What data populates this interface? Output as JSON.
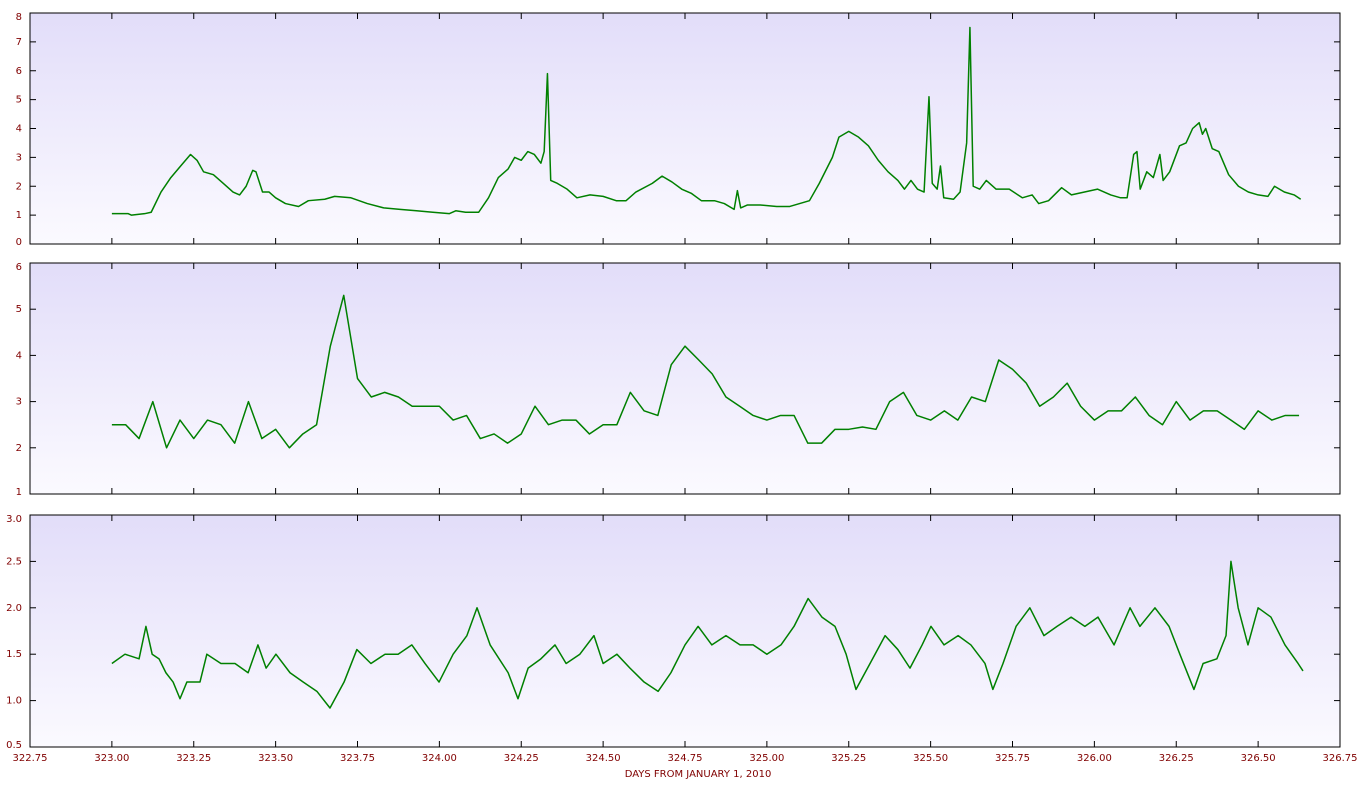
{
  "chart_data": [
    {
      "type": "line",
      "color": "#008000",
      "ylim": [
        0,
        8
      ],
      "yticks": [
        0,
        1,
        2,
        3,
        4,
        5,
        6,
        7,
        8
      ],
      "x": [
        323.0,
        323.05,
        323.06,
        323.1,
        323.12,
        323.15,
        323.18,
        323.21,
        323.24,
        323.26,
        323.28,
        323.31,
        323.34,
        323.37,
        323.39,
        323.41,
        323.43,
        323.44,
        323.46,
        323.48,
        323.5,
        323.53,
        323.57,
        323.6,
        323.65,
        323.68,
        323.73,
        323.78,
        323.83,
        323.88,
        323.93,
        323.98,
        324.03,
        324.05,
        324.08,
        324.12,
        324.15,
        324.18,
        324.21,
        324.23,
        324.25,
        324.27,
        324.29,
        324.31,
        324.32,
        324.33,
        324.34,
        324.36,
        324.39,
        324.42,
        324.46,
        324.5,
        324.54,
        324.57,
        324.6,
        324.65,
        324.68,
        324.71,
        324.74,
        324.77,
        324.8,
        324.84,
        324.87,
        324.9,
        324.91,
        324.92,
        324.94,
        324.98,
        325.03,
        325.07,
        325.1,
        325.13,
        325.16,
        325.2,
        325.22,
        325.25,
        325.28,
        325.31,
        325.34,
        325.37,
        325.4,
        325.42,
        325.44,
        325.46,
        325.48,
        325.495,
        325.505,
        325.52,
        325.53,
        325.54,
        325.57,
        325.59,
        325.61,
        325.62,
        325.63,
        325.65,
        325.67,
        325.7,
        325.74,
        325.78,
        325.81,
        325.83,
        325.86,
        325.9,
        325.93,
        325.97,
        326.01,
        326.05,
        326.08,
        326.1,
        326.12,
        326.13,
        326.14,
        326.16,
        326.18,
        326.2,
        326.21,
        326.23,
        326.26,
        326.28,
        326.3,
        326.32,
        326.33,
        326.34,
        326.36,
        326.38,
        326.41,
        326.44,
        326.47,
        326.5,
        326.53,
        326.55,
        326.58,
        326.61,
        326.63
      ],
      "values": [
        1.05,
        1.05,
        1.0,
        1.05,
        1.1,
        1.8,
        2.3,
        2.7,
        3.1,
        2.9,
        2.5,
        2.4,
        2.1,
        1.8,
        1.7,
        2.0,
        2.55,
        2.5,
        1.8,
        1.8,
        1.6,
        1.4,
        1.3,
        1.5,
        1.55,
        1.65,
        1.6,
        1.4,
        1.25,
        1.2,
        1.15,
        1.1,
        1.05,
        1.15,
        1.1,
        1.1,
        1.6,
        2.3,
        2.6,
        3.0,
        2.9,
        3.2,
        3.1,
        2.8,
        3.2,
        5.9,
        2.2,
        2.1,
        1.9,
        1.6,
        1.7,
        1.65,
        1.5,
        1.5,
        1.8,
        2.1,
        2.35,
        2.15,
        1.9,
        1.75,
        1.5,
        1.5,
        1.4,
        1.2,
        1.85,
        1.25,
        1.35,
        1.35,
        1.3,
        1.3,
        1.4,
        1.5,
        2.1,
        3.0,
        3.7,
        3.9,
        3.7,
        3.4,
        2.9,
        2.5,
        2.2,
        1.9,
        2.2,
        1.9,
        1.8,
        5.1,
        2.1,
        1.9,
        2.7,
        1.6,
        1.55,
        1.8,
        3.5,
        7.5,
        2.0,
        1.9,
        2.2,
        1.9,
        1.9,
        1.6,
        1.7,
        1.4,
        1.5,
        1.95,
        1.7,
        1.8,
        1.9,
        1.7,
        1.6,
        1.6,
        3.1,
        3.2,
        1.9,
        2.5,
        2.3,
        3.1,
        2.2,
        2.5,
        3.4,
        3.5,
        4.0,
        4.2,
        3.8,
        4.0,
        3.3,
        3.2,
        2.4,
        2.0,
        1.8,
        1.7,
        1.65,
        2.0,
        1.8,
        1.7,
        1.55
      ]
    },
    {
      "type": "line",
      "color": "#008000",
      "ylim": [
        1,
        6
      ],
      "yticks": [
        1,
        2,
        3,
        4,
        5,
        6
      ],
      "x": [
        323,
        323.042,
        323.083,
        323.125,
        323.167,
        323.208,
        323.25,
        323.292,
        323.333,
        323.375,
        323.417,
        323.458,
        323.5,
        323.542,
        323.583,
        323.625,
        323.667,
        323.708,
        323.75,
        323.792,
        323.833,
        323.875,
        323.917,
        323.958,
        324,
        324.042,
        324.083,
        324.125,
        324.167,
        324.208,
        324.25,
        324.292,
        324.333,
        324.375,
        324.417,
        324.458,
        324.5,
        324.542,
        324.583,
        324.625,
        324.667,
        324.708,
        324.75,
        324.792,
        324.833,
        324.875,
        324.917,
        324.958,
        325,
        325.042,
        325.083,
        325.125,
        325.167,
        325.208,
        325.25,
        325.292,
        325.333,
        325.375,
        325.417,
        325.458,
        325.5,
        325.542,
        325.583,
        325.625,
        325.667,
        325.708,
        325.75,
        325.792,
        325.833,
        325.875,
        325.917,
        325.958,
        326,
        326.042,
        326.083,
        326.125,
        326.167,
        326.208,
        326.25,
        326.292,
        326.333,
        326.375,
        326.417,
        326.458,
        326.5,
        326.542,
        326.583,
        326.625
      ],
      "values": [
        2.5,
        2.5,
        2.2,
        3.0,
        2.0,
        2.6,
        2.2,
        2.6,
        2.5,
        2.1,
        3.0,
        2.2,
        2.4,
        2.0,
        2.3,
        2.5,
        4.2,
        5.3,
        3.5,
        3.1,
        3.2,
        3.1,
        2.9,
        2.9,
        2.9,
        2.6,
        2.7,
        2.2,
        2.3,
        2.1,
        2.3,
        2.9,
        2.5,
        2.6,
        2.6,
        2.3,
        2.5,
        2.5,
        3.2,
        2.8,
        2.7,
        3.8,
        4.2,
        3.9,
        3.6,
        3.1,
        2.9,
        2.7,
        2.6,
        2.7,
        2.7,
        2.1,
        2.1,
        2.4,
        2.4,
        2.45,
        2.4,
        3.0,
        3.2,
        2.7,
        2.6,
        2.8,
        2.6,
        3.1,
        3.0,
        3.9,
        3.7,
        3.4,
        2.9,
        3.1,
        3.4,
        2.9,
        2.6,
        2.8,
        2.8,
        3.1,
        2.7,
        2.5,
        3.0,
        2.6,
        2.8,
        2.8,
        2.6,
        2.4,
        2.8,
        2.6,
        2.7,
        2.7
      ]
    },
    {
      "type": "line",
      "color": "#008000",
      "ylim": [
        0.5,
        3.0
      ],
      "yticks": [
        0.5,
        {
          "value": 1.0,
          "label": "1.0"
        },
        1.5,
        {
          "value": 2.0,
          "label": "2.0"
        },
        2.5,
        {
          "value": 3.0,
          "label": "3.0"
        }
      ],
      "xlim": [
        322.75,
        326.75
      ],
      "xticks": [
        322.75,
        {
          "value": 323,
          "label": "323.00"
        },
        323.25,
        {
          "value": 323.5,
          "label": "323.50"
        },
        323.75,
        {
          "value": 324,
          "label": "324.00"
        },
        324.25,
        {
          "value": 324.5,
          "label": "324.50"
        },
        324.75,
        {
          "value": 325,
          "label": "325.00"
        },
        325.25,
        {
          "value": 325.5,
          "label": "325.50"
        },
        325.75,
        {
          "value": 326,
          "label": "326.00"
        },
        326.25,
        {
          "value": 326.5,
          "label": "326.50"
        },
        326.75
      ],
      "x_label": "DAYS FROM JANUARY 1, 2010",
      "x": [
        323.0,
        323.04,
        323.083,
        323.104,
        323.123,
        323.144,
        323.165,
        323.187,
        323.208,
        323.229,
        323.269,
        323.29,
        323.333,
        323.376,
        323.416,
        323.446,
        323.471,
        323.501,
        323.544,
        323.584,
        323.626,
        323.666,
        323.709,
        323.748,
        323.791,
        323.834,
        323.874,
        323.916,
        323.956,
        323.999,
        324.042,
        324.084,
        324.115,
        324.155,
        324.21,
        324.24,
        324.271,
        324.31,
        324.353,
        324.387,
        324.429,
        324.472,
        324.5,
        324.542,
        324.582,
        324.625,
        324.668,
        324.707,
        324.75,
        324.79,
        324.832,
        324.875,
        324.918,
        324.958,
        325.0,
        325.043,
        325.083,
        325.126,
        325.168,
        325.208,
        325.242,
        325.272,
        325.315,
        325.361,
        325.4,
        325.437,
        325.474,
        325.501,
        325.541,
        325.584,
        325.623,
        325.666,
        325.69,
        325.721,
        325.761,
        325.803,
        325.846,
        325.886,
        325.929,
        325.971,
        326.011,
        326.06,
        326.109,
        326.139,
        326.185,
        326.228,
        326.261,
        326.304,
        326.332,
        326.374,
        326.402,
        326.417,
        326.439,
        326.469,
        326.5,
        326.539,
        326.582,
        326.622,
        326.637
      ],
      "values": [
        1.4,
        1.5,
        1.45,
        1.8,
        1.5,
        1.45,
        1.3,
        1.2,
        1.02,
        1.2,
        1.2,
        1.5,
        1.4,
        1.4,
        1.3,
        1.6,
        1.35,
        1.5,
        1.3,
        1.2,
        1.1,
        0.92,
        1.2,
        1.55,
        1.4,
        1.5,
        1.5,
        1.6,
        1.4,
        1.2,
        1.5,
        1.7,
        2.0,
        1.6,
        1.3,
        1.02,
        1.35,
        1.45,
        1.6,
        1.4,
        1.5,
        1.7,
        1.4,
        1.5,
        1.35,
        1.2,
        1.1,
        1.3,
        1.6,
        1.8,
        1.6,
        1.7,
        1.6,
        1.6,
        1.5,
        1.6,
        1.8,
        2.1,
        1.9,
        1.8,
        1.5,
        1.12,
        1.4,
        1.7,
        1.55,
        1.35,
        1.6,
        1.8,
        1.6,
        1.7,
        1.6,
        1.4,
        1.12,
        1.4,
        1.8,
        2.0,
        1.7,
        1.8,
        1.9,
        1.8,
        1.9,
        1.6,
        2.0,
        1.8,
        2.0,
        1.8,
        1.5,
        1.12,
        1.4,
        1.45,
        1.7,
        2.5,
        2.0,
        1.6,
        2.0,
        1.9,
        1.6,
        1.4,
        1.32
      ]
    }
  ]
}
